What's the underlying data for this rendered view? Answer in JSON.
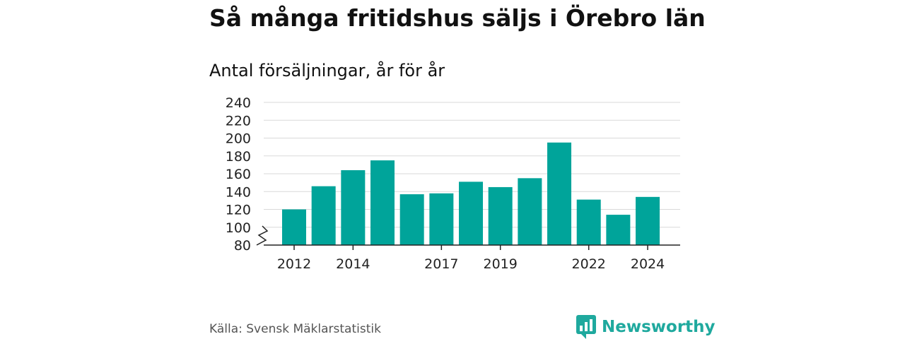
{
  "title": "Så många fritidshus säljs i Örebro län",
  "subtitle": "Antal försäljningar, år för år",
  "source": "Källa: Svensk Mäklarstatistik",
  "brand": {
    "name": "Newsworthy",
    "icon": "newsworthy-logo-icon",
    "color": "#1fa99e"
  },
  "colors": {
    "bar": "#00a49a",
    "grid": "#d9d9d9",
    "axis": "#222222"
  },
  "chart_data": {
    "type": "bar",
    "x": [
      2012,
      2013,
      2014,
      2015,
      2016,
      2017,
      2018,
      2019,
      2020,
      2021,
      2022,
      2023,
      2024
    ],
    "values": [
      120,
      146,
      164,
      175,
      137,
      138,
      151,
      145,
      155,
      195,
      131,
      114,
      134
    ],
    "ylim": [
      80,
      240
    ],
    "yticks": [
      "80",
      "100",
      "120",
      "140",
      "160",
      "180",
      "200",
      "220",
      "240"
    ],
    "xticks": [
      "2012",
      "2014",
      "2017",
      "2019",
      "2022",
      "2024"
    ],
    "axis_break": true,
    "grid": true
  }
}
